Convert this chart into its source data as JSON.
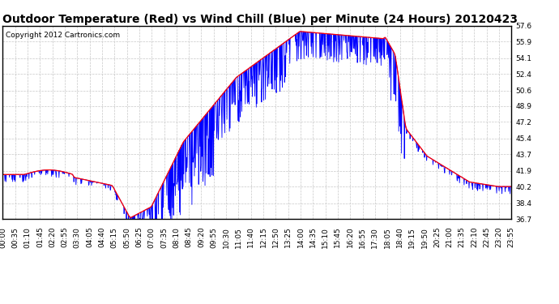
{
  "title": "Outdoor Temperature (Red) vs Wind Chill (Blue) per Minute (24 Hours) 20120423",
  "copyright": "Copyright 2012 Cartronics.com",
  "ylim": [
    36.7,
    57.6
  ],
  "yticks": [
    36.7,
    38.4,
    40.2,
    41.9,
    43.7,
    45.4,
    47.2,
    48.9,
    50.6,
    52.4,
    54.1,
    55.9,
    57.6
  ],
  "xtick_labels": [
    "00:00",
    "00:35",
    "01:10",
    "01:45",
    "02:20",
    "02:55",
    "03:30",
    "04:05",
    "04:40",
    "05:15",
    "05:50",
    "06:25",
    "07:00",
    "07:35",
    "08:10",
    "08:45",
    "09:20",
    "09:55",
    "10:30",
    "11:05",
    "11:40",
    "12:15",
    "12:50",
    "13:25",
    "14:00",
    "14:35",
    "15:10",
    "15:45",
    "16:20",
    "16:55",
    "17:30",
    "18:05",
    "18:40",
    "19:15",
    "19:50",
    "20:25",
    "21:00",
    "21:35",
    "22:10",
    "22:45",
    "23:20",
    "23:55"
  ],
  "temp_color": "#ff0000",
  "wind_color": "#0000ff",
  "bg_color": "#ffffff",
  "grid_color": "#c8c8c8",
  "title_fontsize": 10,
  "copyright_fontsize": 6.5,
  "tick_fontsize": 6.5
}
